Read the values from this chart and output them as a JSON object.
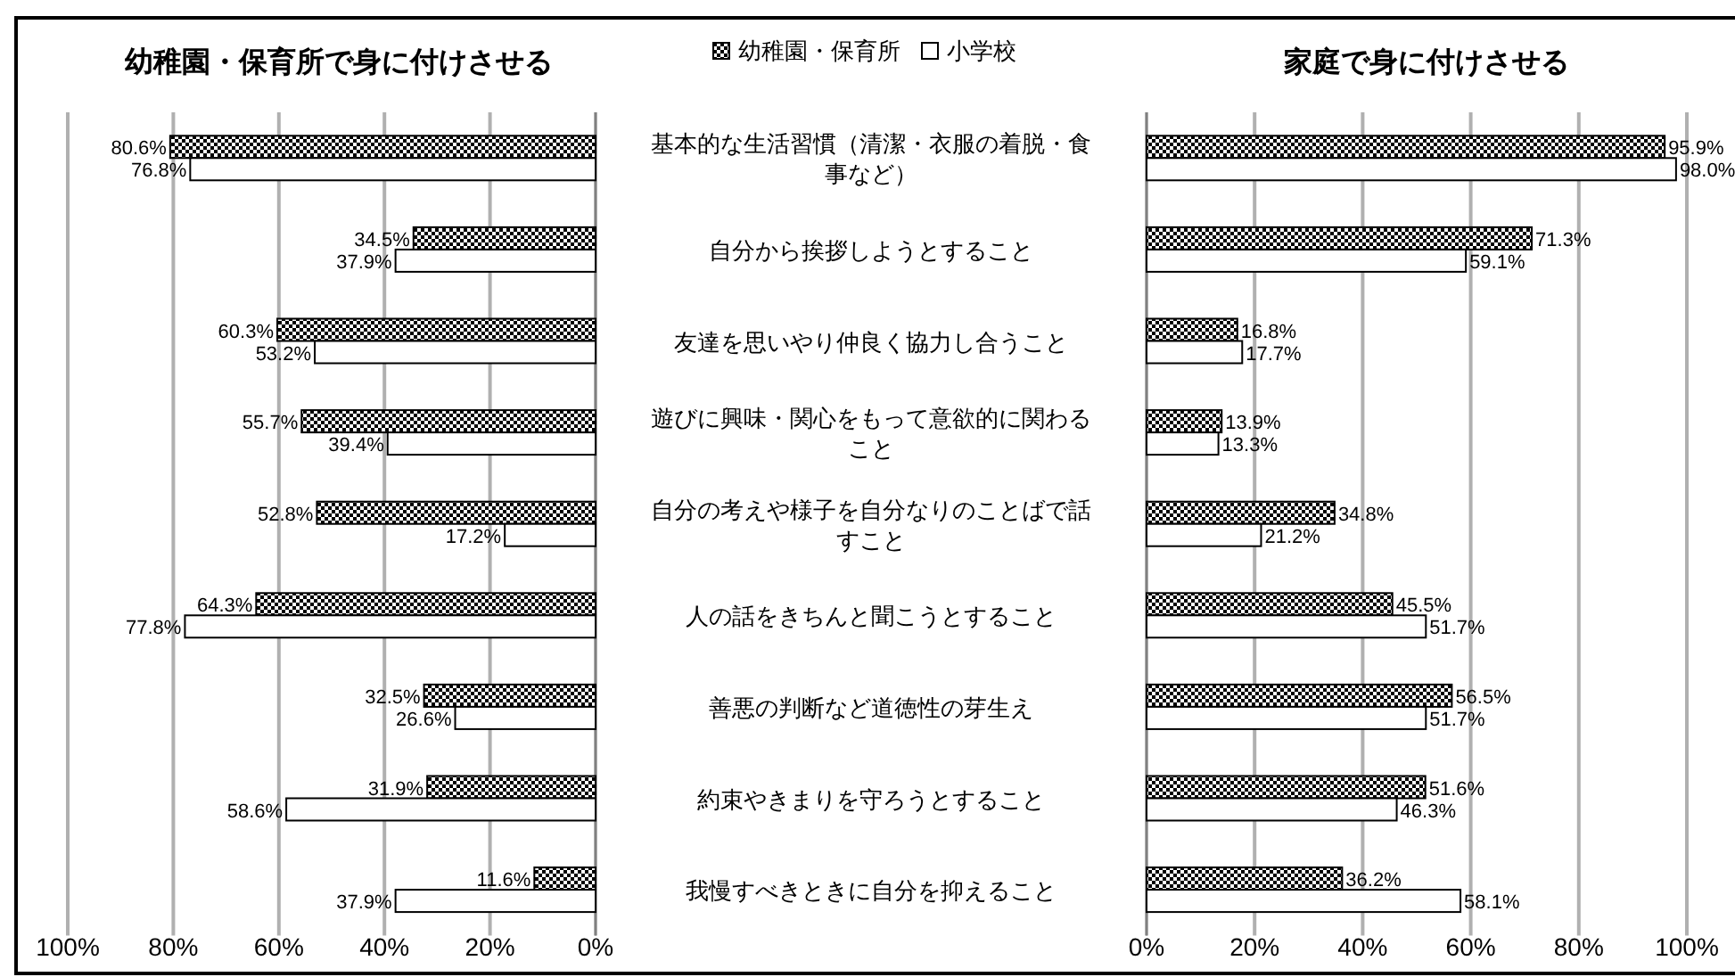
{
  "chart_data": [
    {
      "type": "bar",
      "orientation": "horizontal",
      "title": "幼稚園・保育所で身に付けさせる",
      "legend": "top",
      "grid": "x",
      "categories": [
        "基本的な生活習慣（清潔・衣服の着脱・食事など）",
        "自分から挨拶しようとすること",
        "友達を思いやり仲良く協力し合うこと",
        "遊びに興味・関心をもって意欲的に関わること",
        "自分の考えや様子を自分なりのことばで話すこと",
        "人の話をきちんと聞こうとすること",
        "善悪の判断など道徳性の芽生え",
        "約束やきまりを守ろうとすること",
        "我慢すべきときに自分を抑えること"
      ],
      "xlim": [
        100,
        0
      ],
      "xticks": [
        {
          "value": 100,
          "label": "100%"
        },
        {
          "value": 80,
          "label": "80%"
        },
        {
          "value": 60,
          "label": "60%"
        },
        {
          "value": 40,
          "label": "40%"
        },
        {
          "value": 20,
          "label": "20%"
        },
        {
          "value": 0,
          "label": "0%"
        }
      ],
      "series": [
        {
          "name": "幼稚園・保育所",
          "color": "#000000",
          "values": [
            80.6,
            34.5,
            60.3,
            55.7,
            52.8,
            64.3,
            32.5,
            31.9,
            11.6
          ],
          "value_labels": [
            "80.6%",
            "34.5%",
            "60.3%",
            "55.7%",
            "52.8%",
            "64.3%",
            "32.5%",
            "31.9%",
            "11.6%"
          ]
        },
        {
          "name": "小学校",
          "color": "#ffffff",
          "values": [
            76.8,
            37.9,
            53.2,
            39.4,
            17.2,
            77.8,
            26.6,
            58.6,
            37.9
          ],
          "value_labels": [
            "76.8%",
            "37.9%",
            "53.2%",
            "39.4%",
            "17.2%",
            "77.8%",
            "26.6%",
            "58.6%",
            "37.9%"
          ]
        }
      ]
    },
    {
      "type": "bar",
      "orientation": "horizontal",
      "title": "家庭で身に付けさせる",
      "grid": "x",
      "tick_labels": "x",
      "categories": [
        null,
        null,
        null,
        null,
        null,
        null,
        null,
        null,
        null
      ],
      "xlim": [
        0,
        100
      ],
      "xticks": [
        {
          "value": 0,
          "label": "0%"
        },
        {
          "value": 20,
          "label": "20%"
        },
        {
          "value": 40,
          "label": "40%"
        },
        {
          "value": 60,
          "label": "60%"
        },
        {
          "value": 80,
          "label": "80%"
        },
        {
          "value": 100,
          "label": "100%"
        }
      ],
      "series": [
        {
          "color": "#000000",
          "values": [
            95.9,
            71.3,
            16.8,
            13.9,
            34.8,
            45.5,
            56.5,
            51.6,
            36.2
          ],
          "value_labels": [
            "95.9%",
            "71.3%",
            "16.8%",
            "13.9%",
            "34.8%",
            "45.5%",
            "56.5%",
            "51.6%",
            "36.2%"
          ]
        },
        {
          "color": "#ffffff",
          "values": [
            98.0,
            59.1,
            17.7,
            13.3,
            21.2,
            51.7,
            51.7,
            46.3,
            58.1
          ],
          "value_labels": [
            "98.0%",
            "59.1%",
            "17.7%",
            "13.3%",
            "21.2%",
            "51.7%",
            "51.7%",
            "46.3%",
            "58.1%"
          ]
        }
      ]
    }
  ]
}
